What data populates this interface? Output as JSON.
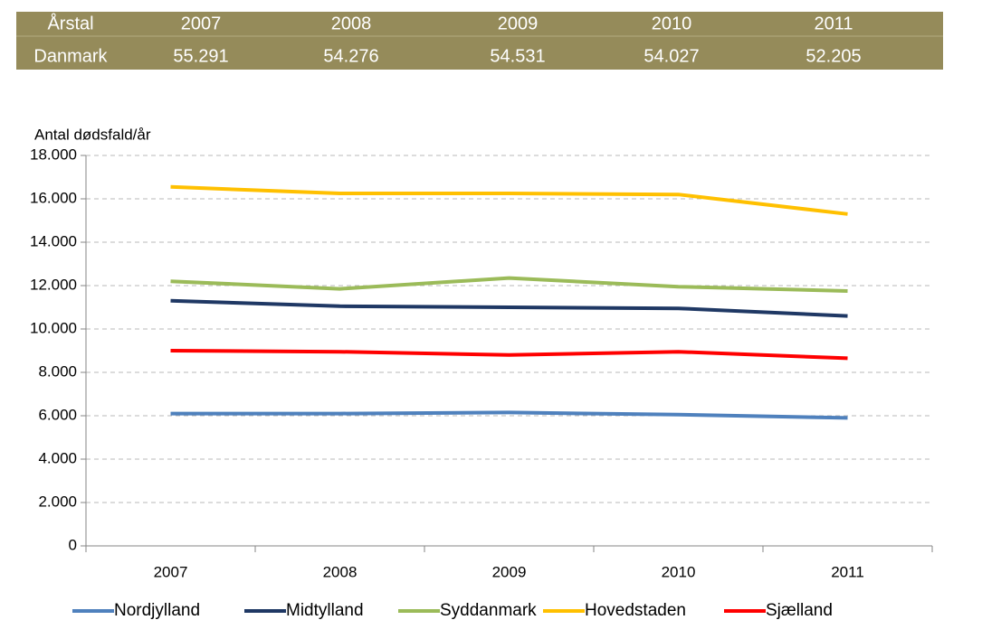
{
  "table": {
    "rows": [
      [
        "Årstal",
        "2007",
        "2008",
        "2009",
        "2010",
        "2011"
      ],
      [
        "Danmark",
        "55.291",
        "54.276",
        "54.531",
        "54.027",
        "52.205"
      ]
    ]
  },
  "chart_data": {
    "type": "line",
    "y_axis_label": "Antal dødsfald/år",
    "categories": [
      "2007",
      "2008",
      "2009",
      "2010",
      "2011"
    ],
    "series": [
      {
        "name": "Nordjylland",
        "color": "#4f81bd",
        "values": [
          6100,
          6100,
          6150,
          6050,
          5900
        ]
      },
      {
        "name": "Midtylland",
        "color": "#1f3864",
        "values": [
          11300,
          11050,
          11000,
          10950,
          10600
        ]
      },
      {
        "name": "Syddanmark",
        "color": "#9bbb59",
        "values": [
          12200,
          11850,
          12350,
          11950,
          11750
        ]
      },
      {
        "name": "Hovedstaden",
        "color": "#ffc000",
        "values": [
          16550,
          16250,
          16250,
          16200,
          15300
        ]
      },
      {
        "name": "Sjælland",
        "color": "#ff0000",
        "values": [
          9000,
          8950,
          8800,
          8950,
          8650
        ]
      }
    ],
    "ylim": [
      0,
      18000
    ],
    "yticks": [
      0,
      {
        "value": 2000,
        "label": "2.000"
      },
      {
        "value": 4000,
        "label": "4.000"
      },
      {
        "value": 6000,
        "label": "6.000"
      },
      {
        "value": 8000,
        "label": "8.000"
      },
      {
        "value": 10000,
        "label": "10.000"
      },
      {
        "value": 12000,
        "label": "12.000"
      },
      {
        "value": 14000,
        "label": "14.000"
      },
      {
        "value": 16000,
        "label": "16.000"
      },
      {
        "value": 18000,
        "label": "18.000"
      }
    ],
    "grid": true,
    "legend": "bottom"
  }
}
